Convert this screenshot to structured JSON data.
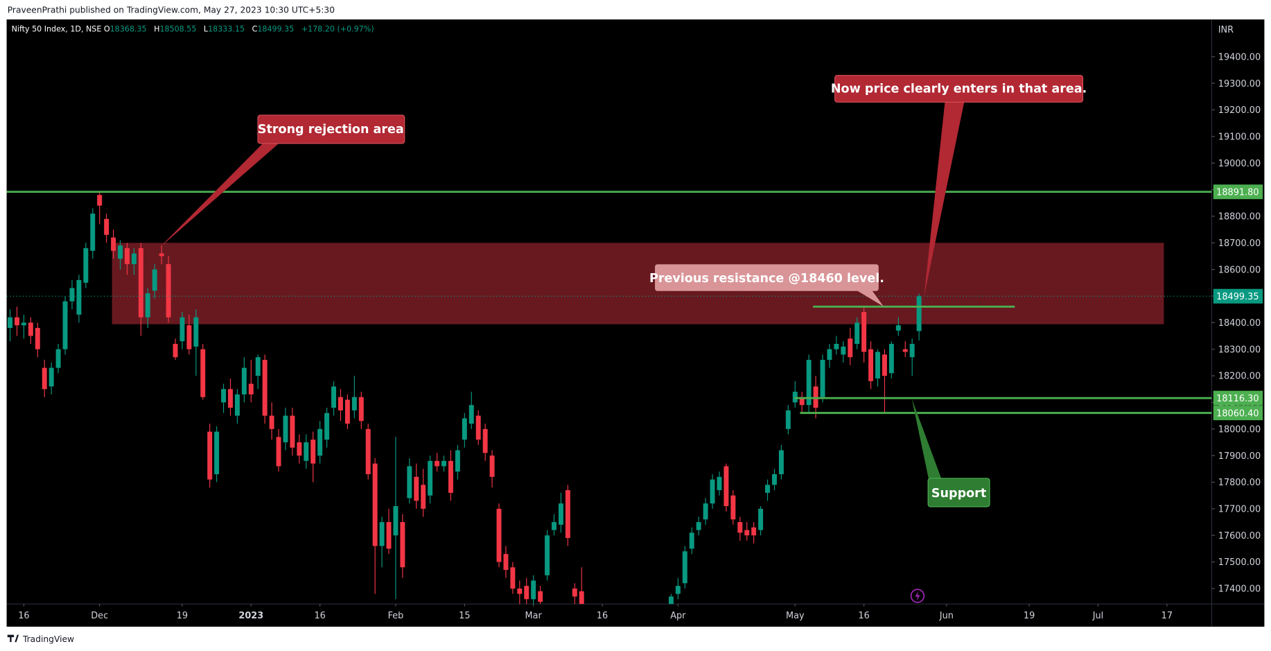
{
  "chart_data": {
    "type": "candlestick",
    "header": "PraveenPrathi published on TradingView.com, May 27, 2023 10:30 UTC+5:30",
    "symbol": "Nifty 50 Index, 1D, NSE",
    "ohlc_letters": [
      "O",
      "H",
      "L",
      "C"
    ],
    "change": "+178.20 (+0.97%)",
    "currency": "INR",
    "footer": "TradingView",
    "annotations": [
      "Strong rejection area",
      "Now price clearly enters in that area.",
      "Previous resistance @18460 level.",
      "Support"
    ],
    "series": [
      {
        "name": "Nifty 50 Index",
        "up_color": "#089981",
        "down_color": "#f23645",
        "values": [
          [
            18380,
            18450,
            18330,
            18420
          ],
          [
            18420,
            18460,
            18350,
            18390
          ],
          [
            18390,
            18430,
            18340,
            18400
          ],
          [
            18400,
            18420,
            18320,
            18350
          ],
          [
            18380,
            18400,
            18270,
            18300
          ],
          [
            18230,
            18260,
            18120,
            18150
          ],
          [
            18160,
            18250,
            18130,
            18230
          ],
          [
            18230,
            18320,
            18210,
            18300
          ],
          [
            18300,
            18500,
            18280,
            18480
          ],
          [
            18480,
            18560,
            18450,
            18530
          ],
          [
            18430,
            18580,
            18400,
            18560
          ],
          [
            18550,
            18700,
            18530,
            18680
          ],
          [
            18670,
            18830,
            18640,
            18810
          ],
          [
            18880,
            18890,
            18770,
            18840
          ],
          [
            18790,
            18810,
            18700,
            18730
          ],
          [
            18720,
            18750,
            18640,
            18670
          ],
          [
            18640,
            18710,
            18600,
            18690
          ],
          [
            18680,
            18700,
            18580,
            18620
          ],
          [
            18620,
            18680,
            18580,
            18660
          ],
          [
            18680,
            18700,
            18350,
            18420
          ],
          [
            18420,
            18530,
            18380,
            18510
          ],
          [
            18520,
            18620,
            18490,
            18600
          ],
          [
            18660,
            18690,
            18620,
            18650
          ],
          [
            18620,
            18650,
            18400,
            18420
          ],
          [
            18320,
            18340,
            18260,
            18270
          ],
          [
            18330,
            18440,
            18300,
            18420
          ],
          [
            18390,
            18430,
            18280,
            18300
          ],
          [
            18310,
            18450,
            18200,
            18420
          ],
          [
            18300,
            18320,
            18110,
            18120
          ],
          [
            17990,
            18020,
            17780,
            17810
          ],
          [
            17830,
            18010,
            17800,
            17990
          ],
          [
            18100,
            18170,
            18060,
            18150
          ],
          [
            18150,
            18190,
            18050,
            18080
          ],
          [
            18050,
            18150,
            18020,
            18130
          ],
          [
            18130,
            18270,
            18100,
            18230
          ],
          [
            18170,
            18260,
            18100,
            18130
          ],
          [
            18200,
            18280,
            18150,
            18270
          ],
          [
            18260,
            18280,
            18020,
            18050
          ],
          [
            18050,
            18100,
            17960,
            18000
          ],
          [
            17970,
            18000,
            17840,
            17860
          ],
          [
            17950,
            18080,
            17920,
            18050
          ],
          [
            18050,
            18080,
            17900,
            17930
          ],
          [
            17950,
            17980,
            17870,
            17900
          ],
          [
            17880,
            17980,
            17850,
            17950
          ],
          [
            17960,
            17990,
            17800,
            17870
          ],
          [
            17900,
            18030,
            17870,
            18000
          ],
          [
            17960,
            18080,
            17930,
            18060
          ],
          [
            18080,
            18180,
            18050,
            18160
          ],
          [
            18120,
            18150,
            18030,
            18070
          ],
          [
            18110,
            18130,
            18000,
            18020
          ],
          [
            18070,
            18200,
            18040,
            18120
          ],
          [
            18120,
            18140,
            18000,
            18030
          ],
          [
            18000,
            18020,
            17810,
            17830
          ],
          [
            17870,
            17890,
            17380,
            17560
          ],
          [
            17560,
            17670,
            17480,
            17650
          ],
          [
            17650,
            17700,
            17530,
            17550
          ],
          [
            17600,
            17970,
            17360,
            17710
          ],
          [
            17650,
            17680,
            17440,
            17480
          ],
          [
            17740,
            17890,
            17720,
            17860
          ],
          [
            17820,
            17870,
            17700,
            17730
          ],
          [
            17790,
            17850,
            17670,
            17700
          ],
          [
            17750,
            17900,
            17720,
            17880
          ],
          [
            17880,
            17910,
            17840,
            17860
          ],
          [
            17860,
            17900,
            17840,
            17880
          ],
          [
            17880,
            17920,
            17730,
            17760
          ],
          [
            17840,
            17940,
            17810,
            17920
          ],
          [
            17960,
            18060,
            17930,
            18040
          ],
          [
            18020,
            18140,
            18000,
            18090
          ],
          [
            18050,
            18070,
            17940,
            17960
          ],
          [
            18000,
            18020,
            17880,
            17910
          ],
          [
            17900,
            17920,
            17780,
            17820
          ],
          [
            17700,
            17720,
            17480,
            17500
          ],
          [
            17530,
            17560,
            17440,
            17470
          ],
          [
            17480,
            17500,
            17380,
            17400
          ],
          [
            17400,
            17430,
            17340,
            17380
          ],
          [
            17410,
            17440,
            17340,
            17360
          ],
          [
            17360,
            17450,
            17330,
            17430
          ],
          [
            17390,
            17410,
            17330,
            17350
          ],
          [
            17450,
            17620,
            17430,
            17600
          ],
          [
            17620,
            17680,
            17600,
            17650
          ],
          [
            17640,
            17760,
            17610,
            17720
          ],
          [
            17770,
            17790,
            17560,
            17590
          ],
          [
            17400,
            17420,
            17340,
            17370
          ],
          [
            17390,
            17480,
            17300,
            17320
          ],
          null,
          null,
          null,
          null,
          null,
          null,
          null,
          null,
          null,
          null,
          null,
          null,
          [
            17330,
            17380,
            17300,
            17370
          ],
          [
            17380,
            17440,
            17360,
            17410
          ],
          [
            17420,
            17560,
            17400,
            17540
          ],
          [
            17550,
            17630,
            17530,
            17610
          ],
          [
            17620,
            17670,
            17600,
            17650
          ],
          [
            17660,
            17740,
            17640,
            17720
          ],
          [
            17720,
            17830,
            17700,
            17810
          ],
          [
            17770,
            17840,
            17750,
            17820
          ],
          [
            17860,
            17870,
            17690,
            17710
          ],
          [
            17750,
            17770,
            17640,
            17660
          ],
          [
            17650,
            17670,
            17580,
            17610
          ],
          [
            17620,
            17650,
            17580,
            17600
          ],
          [
            17630,
            17650,
            17570,
            17600
          ],
          [
            17620,
            17710,
            17600,
            17700
          ],
          [
            17760,
            17810,
            17730,
            17790
          ],
          [
            17790,
            17850,
            17770,
            17830
          ],
          [
            17830,
            17940,
            17810,
            17920
          ],
          [
            18000,
            18090,
            17980,
            18070
          ],
          [
            18100,
            18180,
            18080,
            18140
          ],
          [
            18120,
            18140,
            18060,
            18090
          ],
          [
            18090,
            18280,
            18060,
            18260
          ],
          [
            18160,
            18200,
            18040,
            18080
          ],
          [
            18120,
            18280,
            18100,
            18260
          ],
          [
            18260,
            18320,
            18230,
            18300
          ],
          [
            18300,
            18350,
            18280,
            18320
          ],
          [
            18280,
            18330,
            18250,
            18310
          ],
          [
            18340,
            18380,
            18240,
            18270
          ],
          [
            18320,
            18420,
            18300,
            18400
          ],
          [
            18440,
            18460,
            18250,
            18290
          ],
          [
            18300,
            18330,
            18150,
            18180
          ],
          [
            18190,
            18300,
            18160,
            18290
          ],
          [
            18280,
            18300,
            18060,
            18200
          ],
          [
            18210,
            18330,
            18190,
            18320
          ],
          [
            18370,
            18420,
            18350,
            18390
          ],
          [
            18300,
            18330,
            18270,
            18290
          ],
          [
            18270,
            18340,
            18200,
            18320
          ],
          [
            18368.35,
            18508.55,
            18333.15,
            18499.35
          ]
        ]
      }
    ],
    "ylim": [
      17342,
      19540
    ],
    "yticks": [
      {
        "value": 17400,
        "label": "17400.00"
      },
      {
        "value": 17500,
        "label": "17500.00"
      },
      {
        "value": 17600,
        "label": "17600.00"
      },
      {
        "value": 17700,
        "label": "17700.00"
      },
      {
        "value": 17800,
        "label": "17800.00"
      },
      {
        "value": 17900,
        "label": "17900.00"
      },
      {
        "value": 18000,
        "label": "18000.00"
      },
      {
        "value": 18100,
        "label": "18100.00"
      },
      {
        "value": 18200,
        "label": "18200.00"
      },
      {
        "value": 18300,
        "label": "18300.00"
      },
      {
        "value": 18400,
        "label": "18400.00"
      },
      {
        "value": 18500,
        "label": "18500.00"
      },
      {
        "value": 18600,
        "label": "18600.00"
      },
      {
        "value": 18700,
        "label": "18700.00"
      },
      {
        "value": 18800,
        "label": "18800.00"
      },
      {
        "value": 18900,
        "label": "18900.00"
      },
      {
        "value": 19000,
        "label": "19000.00"
      },
      {
        "value": 19100,
        "label": "19100.00"
      },
      {
        "value": 19200,
        "label": "19200.00"
      },
      {
        "value": 19300,
        "label": "19300.00"
      },
      {
        "value": 19400,
        "label": "19400.00"
      }
    ],
    "xlim": [
      -0.5,
      174.5
    ],
    "xticks": [
      {
        "value": 2,
        "label": "16"
      },
      {
        "value": 13,
        "label": "Dec"
      },
      {
        "value": 25,
        "label": "19"
      },
      {
        "value": 35,
        "label": "2023"
      },
      {
        "value": 45,
        "label": "16"
      },
      {
        "value": 56,
        "label": "Feb"
      },
      {
        "value": 66,
        "label": "15"
      },
      {
        "value": 76,
        "label": "Mar"
      },
      {
        "value": 86,
        "label": "16"
      },
      {
        "value": 97,
        "label": "Apr"
      },
      {
        "value": 114,
        "label": "May"
      },
      {
        "value": 124,
        "label": "16"
      },
      {
        "value": 136,
        "label": "Jun"
      },
      {
        "value": 148,
        "label": "19"
      },
      {
        "value": 158,
        "label": "Jul"
      },
      {
        "value": 168,
        "label": "17"
      }
    ],
    "zone": {
      "top": 18700,
      "bottom": 18394,
      "color": "#6e1a22"
    },
    "levels": [
      {
        "value": 18891.8,
        "label": "18891.80",
        "color": "#4caf50"
      },
      {
        "value": 18116.3,
        "label": "18116.30",
        "color": "#4caf50"
      },
      {
        "value": 18060.4,
        "label": "18060.40",
        "color": "#4caf50"
      }
    ],
    "resistance_line": {
      "value": 18460,
      "color": "#4caf50"
    }
  }
}
